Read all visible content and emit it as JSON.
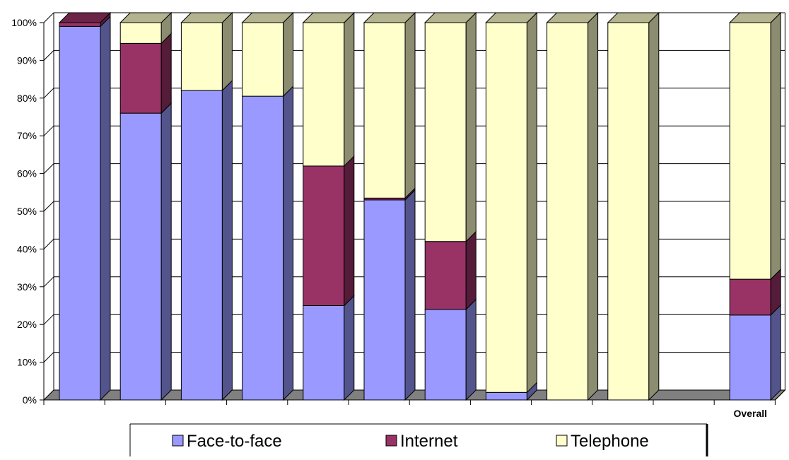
{
  "chart_data": {
    "type": "bar",
    "stacked": true,
    "percent": true,
    "style": "3d",
    "categories": [
      "",
      "",
      "",
      "",
      "",
      "",
      "",
      "",
      "",
      "",
      "",
      "Overall"
    ],
    "series": [
      {
        "name": "Face-to-face",
        "color": "#9999ff",
        "values": [
          99,
          76,
          82,
          80.5,
          25,
          53,
          24,
          2,
          0,
          0,
          0,
          22.5
        ]
      },
      {
        "name": "Internet",
        "color": "#993366",
        "values": [
          1,
          18.5,
          0,
          0,
          37,
          0.5,
          18,
          0,
          0,
          0,
          0,
          9.5
        ]
      },
      {
        "name": "Telephone",
        "color": "#ffffcc",
        "values": [
          0,
          5.5,
          18,
          19.5,
          38,
          46.5,
          58,
          98,
          100,
          100,
          0,
          68
        ]
      }
    ],
    "yticks": [
      "0%",
      "10%",
      "20%",
      "30%",
      "40%",
      "50%",
      "60%",
      "70%",
      "80%",
      "90%",
      "100%"
    ],
    "ylim": [
      0,
      100
    ],
    "grid": true,
    "legend_position": "bottom"
  }
}
